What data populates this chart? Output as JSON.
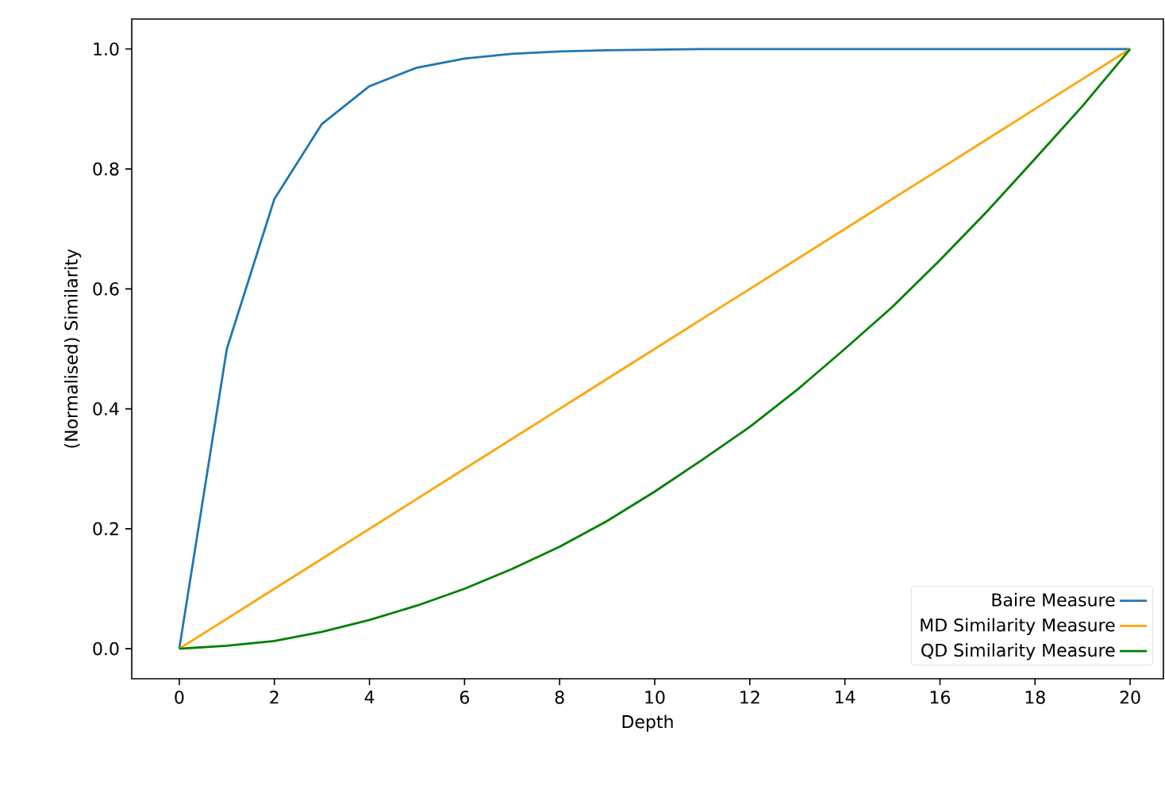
{
  "chart_data": {
    "type": "line",
    "xlabel": "Depth",
    "ylabel": "(Normalised) Similarity",
    "x": [
      0,
      1,
      2,
      3,
      4,
      5,
      6,
      7,
      8,
      9,
      10,
      11,
      12,
      13,
      14,
      15,
      16,
      17,
      18,
      19,
      20
    ],
    "series": [
      {
        "name": "Baire Measure",
        "color": "#1f77b4",
        "values": [
          0,
          0.5,
          0.75,
          0.875,
          0.938,
          0.969,
          0.984,
          0.992,
          0.996,
          0.998,
          0.999,
          1.0,
          1.0,
          1.0,
          1.0,
          1.0,
          1.0,
          1.0,
          1.0,
          1.0,
          1.0
        ]
      },
      {
        "name": "MD Similarity Measure",
        "color": "#ffa500",
        "values": [
          0,
          0.05,
          0.1,
          0.15,
          0.2,
          0.25,
          0.3,
          0.35,
          0.4,
          0.45,
          0.5,
          0.55,
          0.6,
          0.65,
          0.7,
          0.75,
          0.8,
          0.85,
          0.9,
          0.95,
          1.0
        ]
      },
      {
        "name": "QD Similarity Measure",
        "color": "#008000",
        "values": [
          0,
          0.005,
          0.013,
          0.028,
          0.048,
          0.072,
          0.1,
          0.133,
          0.17,
          0.213,
          0.262,
          0.315,
          0.37,
          0.432,
          0.5,
          0.57,
          0.648,
          0.73,
          0.817,
          0.905,
          1.0
        ]
      }
    ],
    "xlim": [
      -1,
      20.7
    ],
    "ylim": [
      -0.05,
      1.05
    ],
    "xticks": [
      0,
      2,
      4,
      6,
      8,
      10,
      12,
      14,
      16,
      18,
      20
    ],
    "yticks": [
      {
        "value": 0,
        "label": "0.0"
      },
      0.2,
      0.4,
      0.6,
      0.8,
      {
        "value": 1,
        "label": "1.0"
      }
    ],
    "legend": "bottom right",
    "grid": false,
    "marker": "none",
    "line_style": "solid"
  }
}
